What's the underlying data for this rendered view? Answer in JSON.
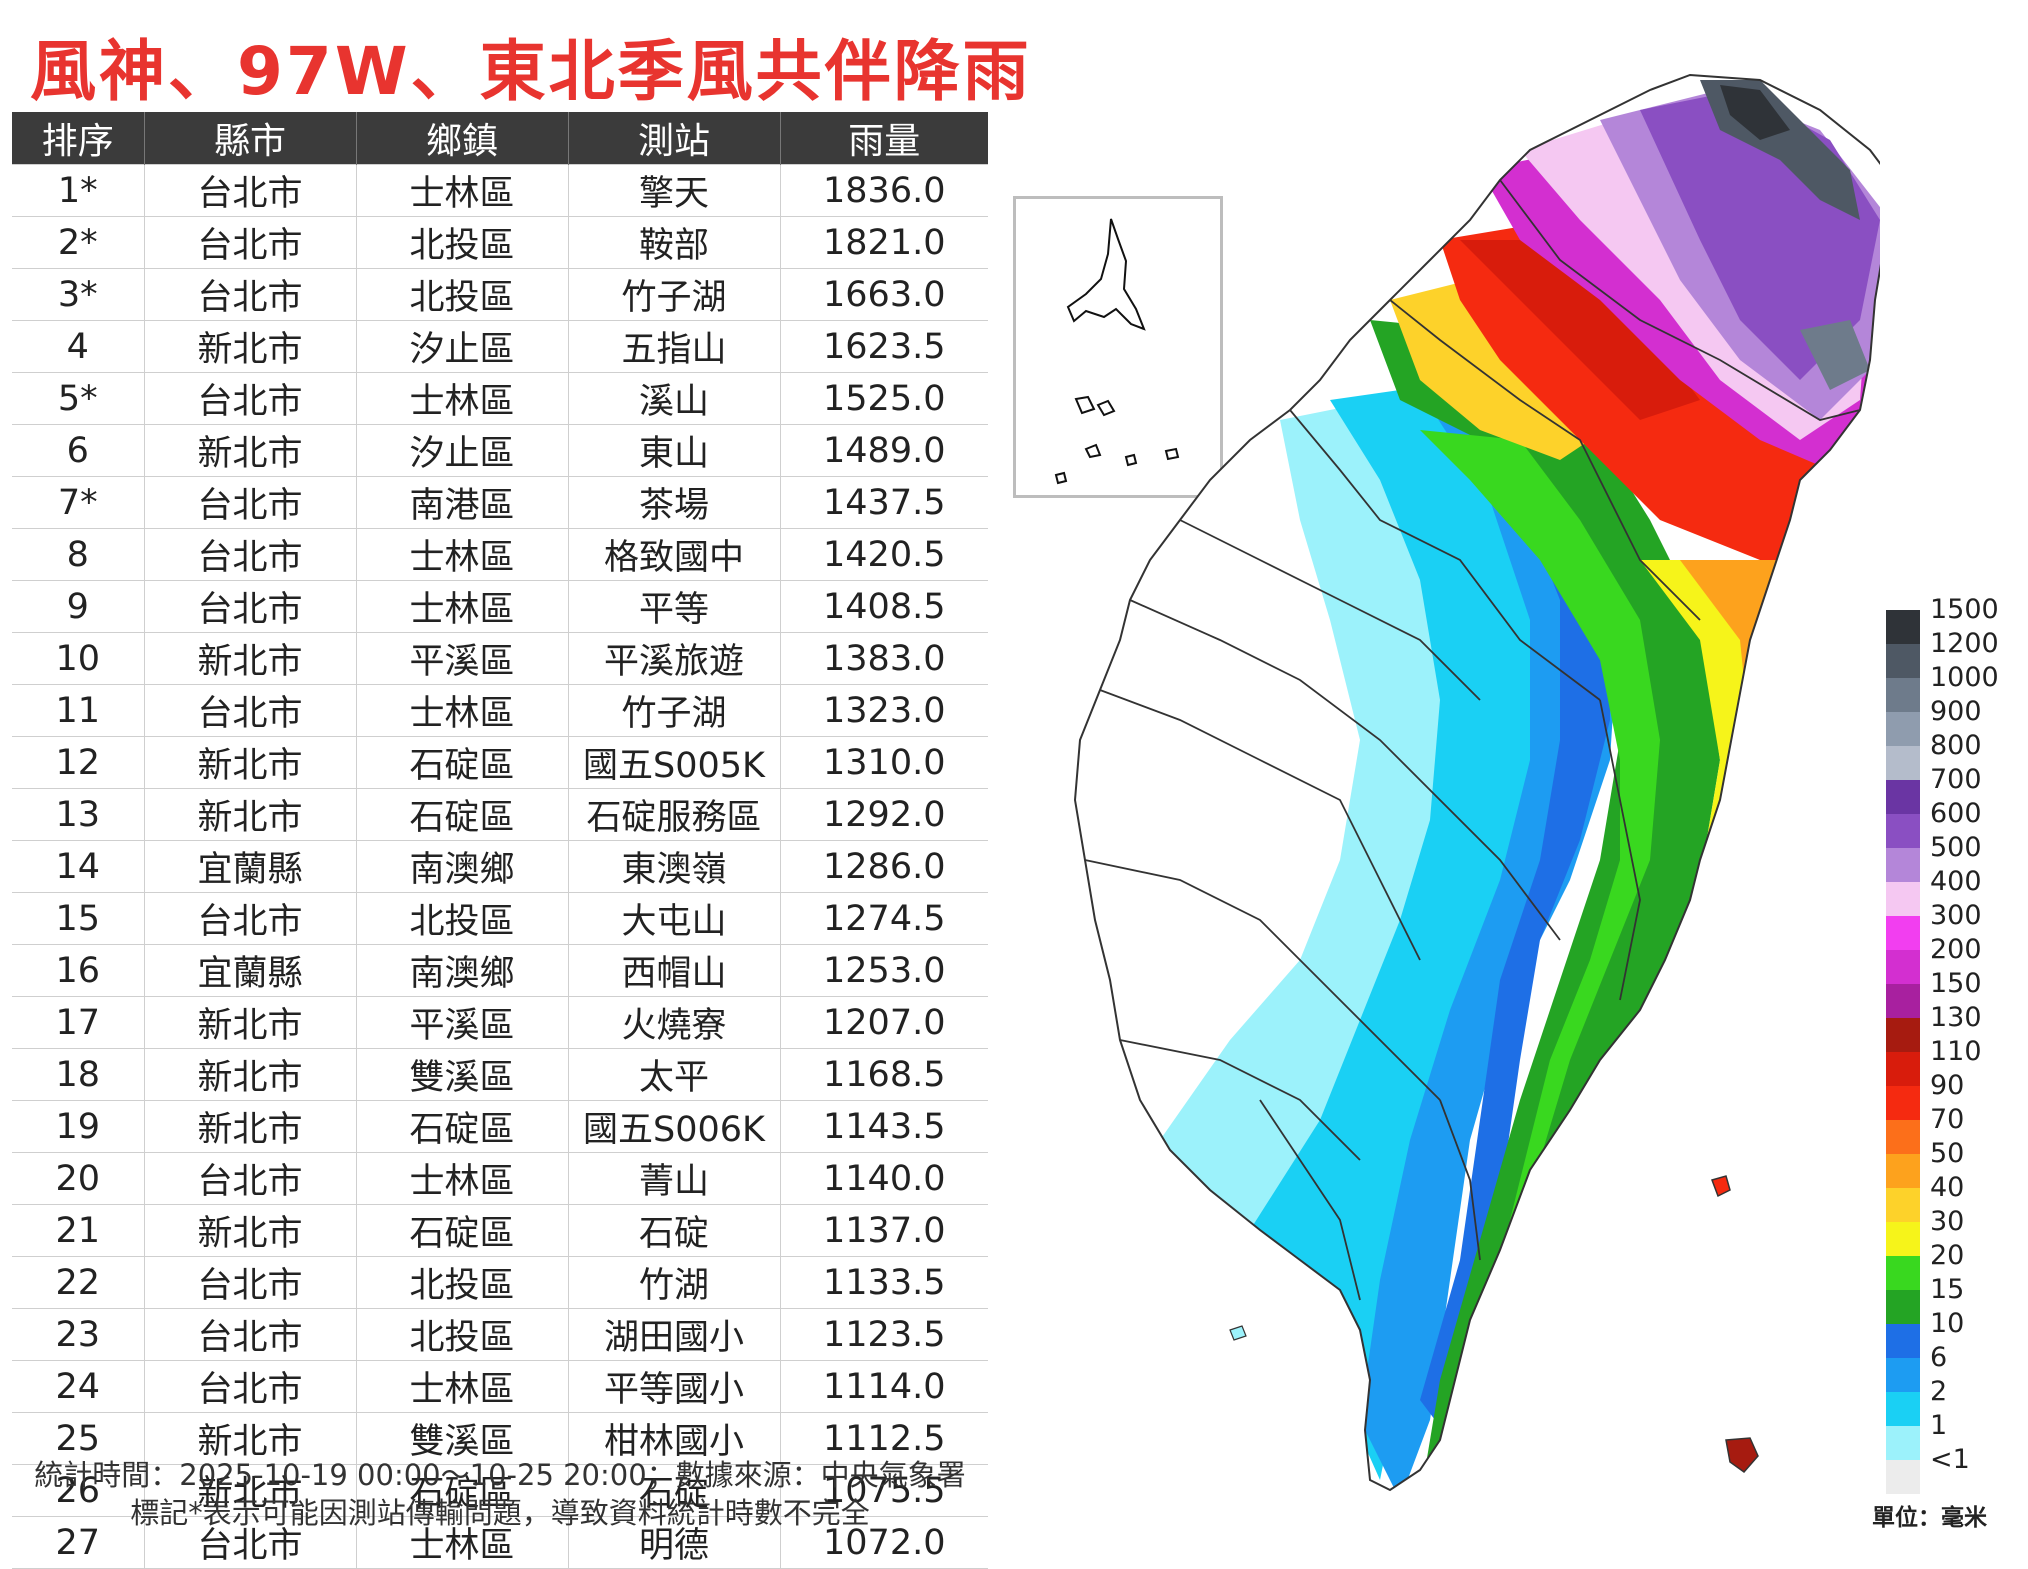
{
  "title": "風神、97W、東北季風共伴降雨",
  "table": {
    "headers": [
      "排序",
      "縣市",
      "鄉鎮",
      "測站",
      "雨量"
    ],
    "rows": [
      [
        "1*",
        "台北市",
        "士林區",
        "擎天",
        "1836.0"
      ],
      [
        "2*",
        "台北市",
        "北投區",
        "鞍部",
        "1821.0"
      ],
      [
        "3*",
        "台北市",
        "北投區",
        "竹子湖",
        "1663.0"
      ],
      [
        "4",
        "新北市",
        "汐止區",
        "五指山",
        "1623.5"
      ],
      [
        "5*",
        "台北市",
        "士林區",
        "溪山",
        "1525.0"
      ],
      [
        "6",
        "新北市",
        "汐止區",
        "東山",
        "1489.0"
      ],
      [
        "7*",
        "台北市",
        "南港區",
        "茶場",
        "1437.5"
      ],
      [
        "8",
        "台北市",
        "士林區",
        "格致國中",
        "1420.5"
      ],
      [
        "9",
        "台北市",
        "士林區",
        "平等",
        "1408.5"
      ],
      [
        "10",
        "新北市",
        "平溪區",
        "平溪旅遊",
        "1383.0"
      ],
      [
        "11",
        "台北市",
        "士林區",
        "竹子湖",
        "1323.0"
      ],
      [
        "12",
        "新北市",
        "石碇區",
        "國五S005K",
        "1310.0"
      ],
      [
        "13",
        "新北市",
        "石碇區",
        "石碇服務區",
        "1292.0"
      ],
      [
        "14",
        "宜蘭縣",
        "南澳鄉",
        "東澳嶺",
        "1286.0"
      ],
      [
        "15",
        "台北市",
        "北投區",
        "大屯山",
        "1274.5"
      ],
      [
        "16",
        "宜蘭縣",
        "南澳鄉",
        "西帽山",
        "1253.0"
      ],
      [
        "17",
        "新北市",
        "平溪區",
        "火燒寮",
        "1207.0"
      ],
      [
        "18",
        "新北市",
        "雙溪區",
        "太平",
        "1168.5"
      ],
      [
        "19",
        "新北市",
        "石碇區",
        "國五S006K",
        "1143.5"
      ],
      [
        "20",
        "台北市",
        "士林區",
        "菁山",
        "1140.0"
      ],
      [
        "21",
        "新北市",
        "石碇區",
        "石碇",
        "1137.0"
      ],
      [
        "22",
        "台北市",
        "北投區",
        "竹湖",
        "1133.5"
      ],
      [
        "23",
        "台北市",
        "北投區",
        "湖田國小",
        "1123.5"
      ],
      [
        "24",
        "台北市",
        "士林區",
        "平等國小",
        "1114.0"
      ],
      [
        "25",
        "新北市",
        "雙溪區",
        "柑林國小",
        "1112.5"
      ],
      [
        "26",
        "新北市",
        "石碇區",
        "石碇",
        "1075.5"
      ],
      [
        "27",
        "台北市",
        "士林區",
        "明德",
        "1072.0"
      ]
    ]
  },
  "footer": {
    "line1": "統計時間：2025-10-19 00:00～10-25 20:00；數據來源：中央氣象署",
    "line2": "標記*表示可能因測站傳輸問題，導致資料統計時數不完全"
  },
  "legend": {
    "unit": "單位：毫米",
    "levels": [
      {
        "label": "1500",
        "color": "#2f3338"
      },
      {
        "label": "1200",
        "color": "#4e5864"
      },
      {
        "label": "1000",
        "color": "#6e7b8b"
      },
      {
        "label": "900",
        "color": "#8f9cae"
      },
      {
        "label": "800",
        "color": "#b4bccb"
      },
      {
        "label": "700",
        "color": "#6a35a3"
      },
      {
        "label": "600",
        "color": "#8a4fc2"
      },
      {
        "label": "500",
        "color": "#b486d9"
      },
      {
        "label": "400",
        "color": "#f5c8f2"
      },
      {
        "label": "300",
        "color": "#f23ef0"
      },
      {
        "label": "200",
        "color": "#d32fd0"
      },
      {
        "label": "150",
        "color": "#a8209f"
      },
      {
        "label": "130",
        "color": "#a61b10"
      },
      {
        "label": "110",
        "color": "#d81c0c"
      },
      {
        "label": "90",
        "color": "#f52a10"
      },
      {
        "label": "70",
        "color": "#fc6f1a"
      },
      {
        "label": "50",
        "color": "#fda21d"
      },
      {
        "label": "40",
        "color": "#fdd22a"
      },
      {
        "label": "30",
        "color": "#f6f41a"
      },
      {
        "label": "20",
        "color": "#39d81f"
      },
      {
        "label": "15",
        "color": "#24a424"
      },
      {
        "label": "10",
        "color": "#1e6fe6"
      },
      {
        "label": "6",
        "color": "#1d9cf2"
      },
      {
        "label": "2",
        "color": "#1ad0f4"
      },
      {
        "label": "1",
        "color": "#9cf2fb"
      },
      {
        "label": "<1",
        "color": "#ececec"
      }
    ]
  }
}
